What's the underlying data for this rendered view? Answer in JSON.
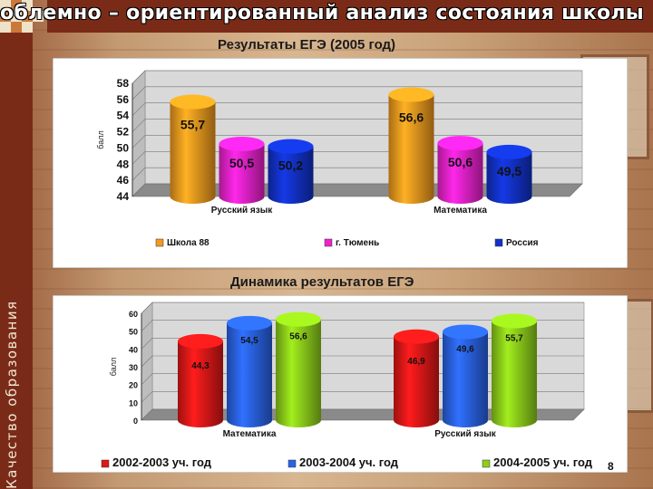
{
  "slide": {
    "title": "Проблемно – ориентированный анализ состояния школы",
    "side_label": "Качество образования",
    "page_number": "8"
  },
  "chart_data": [
    {
      "type": "bar",
      "title": "Результаты ЕГЭ (2005 год)",
      "ylabel": "балл",
      "ylim": [
        44,
        58
      ],
      "yticks": [
        44,
        46,
        48,
        50,
        52,
        54,
        56,
        58
      ],
      "categories": [
        "Русский язык",
        "Математика"
      ],
      "series": [
        {
          "name": "Школа 88",
          "color": "#f39a1e",
          "values": [
            55.7,
            56.6
          ],
          "labels": [
            "55,7",
            "56,6"
          ]
        },
        {
          "name": "г. Тюмень",
          "color": "#ee22cc",
          "values": [
            50.5,
            50.6
          ],
          "labels": [
            "50,5",
            "50,6"
          ]
        },
        {
          "name": "Россия",
          "color": "#1232c8",
          "values": [
            50.2,
            49.5
          ],
          "labels": [
            "50,2",
            "49,5"
          ]
        }
      ],
      "legend": "bottom"
    },
    {
      "type": "bar",
      "title": "Динамика результатов ЕГЭ",
      "ylabel": "балл",
      "ylim": [
        0,
        60
      ],
      "yticks": [
        0,
        10,
        20,
        30,
        40,
        50,
        60
      ],
      "categories": [
        "Математика",
        "Русский язык"
      ],
      "series": [
        {
          "name": "2002-2003 уч. год",
          "color": "#e01818",
          "values": [
            44.3,
            46.9
          ],
          "labels": [
            "44,3",
            "46,9"
          ]
        },
        {
          "name": "2003-2004 уч. год",
          "color": "#2a62e8",
          "values": [
            54.5,
            49.6
          ],
          "labels": [
            "54,5",
            "49,6"
          ]
        },
        {
          "name": "2004-2005 уч. год",
          "color": "#8dcf1a",
          "values": [
            56.6,
            55.7
          ],
          "labels": [
            "56,6",
            "55,7"
          ]
        }
      ],
      "legend": "bottom"
    }
  ]
}
